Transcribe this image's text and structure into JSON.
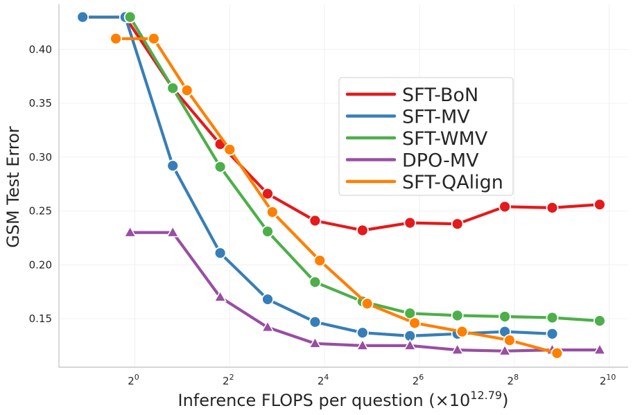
{
  "chart_data": {
    "type": "line",
    "title": "",
    "xlabel": "Inference FLOPS per question (×10",
    "xlabel_exponent": "12.79",
    "xlabel_suffix": ")",
    "ylabel": "GSM Test Error",
    "x_scale": "log2",
    "xlim_log2": [
      -1.6,
      10.4
    ],
    "ylim": [
      0.105,
      0.442
    ],
    "x_ticks": [
      {
        "log2": 0,
        "base": "2",
        "exp": "0"
      },
      {
        "log2": 2,
        "base": "2",
        "exp": "2"
      },
      {
        "log2": 4,
        "base": "2",
        "exp": "4"
      },
      {
        "log2": 6,
        "base": "2",
        "exp": "6"
      },
      {
        "log2": 8,
        "base": "2",
        "exp": "8"
      },
      {
        "log2": 10,
        "base": "2",
        "exp": "10"
      }
    ],
    "y_ticks": [
      "0.15",
      "0.20",
      "0.25",
      "0.30",
      "0.35",
      "0.40"
    ],
    "grid": true,
    "legend_position": "upper-right",
    "series": [
      {
        "name": "SFT-BoN",
        "color": "#e41a1c",
        "marker": "circle",
        "x_log2": [
          -1.1,
          -0.2,
          0.8,
          1.8,
          2.8,
          3.8,
          4.8,
          5.8,
          6.8,
          7.8,
          8.8,
          9.8
        ],
        "y": [
          0.43,
          0.43,
          0.364,
          0.312,
          0.266,
          0.241,
          0.232,
          0.239,
          0.238,
          0.254,
          0.253,
          0.256
        ]
      },
      {
        "name": "SFT-MV",
        "color": "#377eb8",
        "marker": "circle",
        "x_log2": [
          -1.1,
          -0.2,
          0.8,
          1.8,
          2.8,
          3.8,
          4.8,
          5.8,
          6.8,
          7.8,
          8.8
        ],
        "y": [
          0.43,
          0.43,
          0.292,
          0.211,
          0.168,
          0.147,
          0.137,
          0.134,
          0.136,
          0.138,
          0.136
        ]
      },
      {
        "name": "SFT-WMV",
        "color": "#4daf4a",
        "marker": "circle",
        "x_log2": [
          -0.1,
          0.8,
          1.8,
          2.8,
          3.8,
          4.8,
          5.8,
          6.8,
          7.8,
          8.8,
          9.8
        ],
        "y": [
          0.43,
          0.364,
          0.291,
          0.231,
          0.184,
          0.166,
          0.155,
          0.153,
          0.152,
          0.151,
          0.148
        ]
      },
      {
        "name": "DPO-MV",
        "color": "#984ea3",
        "marker": "triangle",
        "x_log2": [
          -0.1,
          0.8,
          1.8,
          2.8,
          3.8,
          4.8,
          5.8,
          6.8,
          7.8,
          8.8,
          9.8
        ],
        "y": [
          0.23,
          0.23,
          0.17,
          0.142,
          0.127,
          0.125,
          0.125,
          0.121,
          0.12,
          0.121,
          0.121
        ]
      },
      {
        "name": "SFT-QAlign",
        "color": "#ff7f00",
        "marker": "circle",
        "x_log2": [
          -0.4,
          0.4,
          1.1,
          2.0,
          2.9,
          3.9,
          4.9,
          5.9,
          6.9,
          7.9,
          8.9
        ],
        "y": [
          0.41,
          0.41,
          0.362,
          0.307,
          0.249,
          0.204,
          0.164,
          0.146,
          0.138,
          0.13,
          0.118
        ]
      }
    ]
  }
}
